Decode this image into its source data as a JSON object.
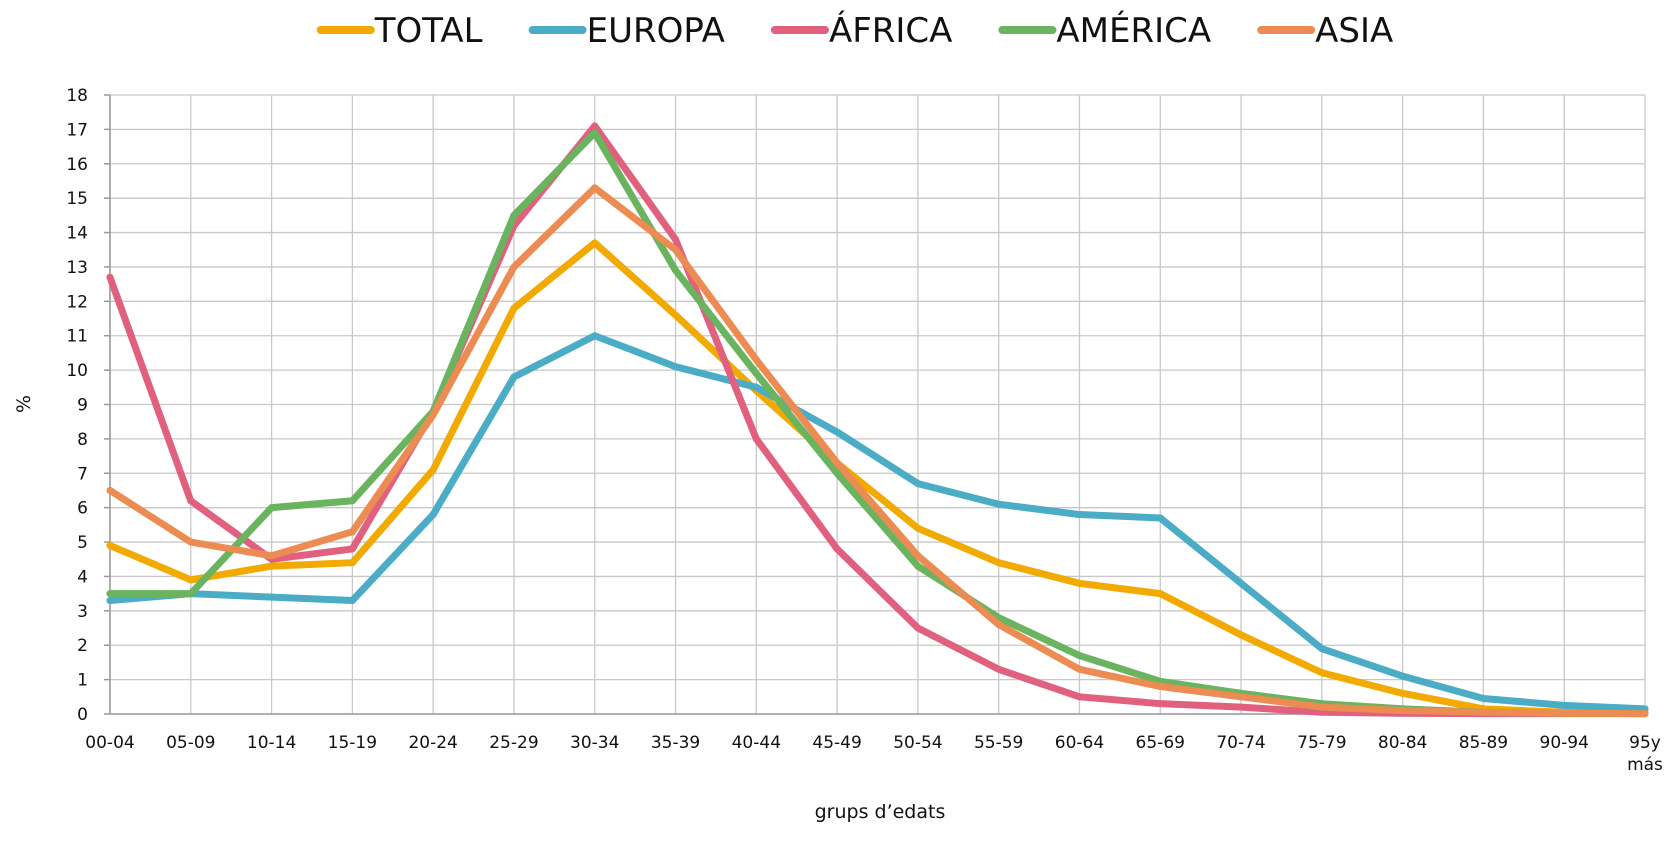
{
  "chart_data": {
    "type": "line",
    "categories": [
      "00-04",
      "05-09",
      "10-14",
      "15-19",
      "20-24",
      "25-29",
      "30-34",
      "35-39",
      "40-44",
      "45-49",
      "50-54",
      "55-59",
      "60-64",
      "65-69",
      "70-74",
      "75-79",
      "80-84",
      "85-89",
      "90-94",
      "95 y más"
    ],
    "category_lines": [
      [
        "00-04"
      ],
      [
        "05-09"
      ],
      [
        "10-14"
      ],
      [
        "15-19"
      ],
      [
        "20-24"
      ],
      [
        "25-29"
      ],
      [
        "30-34"
      ],
      [
        "35-39"
      ],
      [
        "40-44"
      ],
      [
        "45-49"
      ],
      [
        "50-54"
      ],
      [
        "55-59"
      ],
      [
        "60-64"
      ],
      [
        "65-69"
      ],
      [
        "70-74"
      ],
      [
        "75-79"
      ],
      [
        "80-84"
      ],
      [
        "85-89"
      ],
      [
        "90-94"
      ],
      [
        "95y",
        "más"
      ]
    ],
    "xlabel": "grups d’edats",
    "ylabel": "%",
    "ylim": [
      0,
      18
    ],
    "yticks": [
      "0",
      "1",
      "2",
      "3",
      "4",
      "5",
      "6",
      "7",
      "8",
      "9",
      "10",
      "11",
      "12",
      "13",
      "14",
      "15",
      "16",
      "17",
      "18"
    ],
    "grid": true,
    "legend_position": "top",
    "series": [
      {
        "name": "TOTAL",
        "color": "#F2A900",
        "values": [
          4.9,
          3.9,
          4.3,
          4.4,
          7.1,
          11.8,
          13.7,
          11.6,
          9.4,
          7.3,
          5.4,
          4.4,
          3.8,
          3.5,
          2.3,
          1.2,
          0.6,
          0.15,
          0.05,
          0.05
        ]
      },
      {
        "name": "EUROPA",
        "color": "#4BACC6",
        "values": [
          3.3,
          3.5,
          3.4,
          3.3,
          5.8,
          9.8,
          11.0,
          10.1,
          9.5,
          8.2,
          6.7,
          6.1,
          5.8,
          5.7,
          3.8,
          1.9,
          1.1,
          0.45,
          0.25,
          0.15
        ]
      },
      {
        "name": "ÁFRICA",
        "color": "#E0607E",
        "values": [
          12.7,
          6.2,
          4.5,
          4.8,
          8.8,
          14.2,
          17.1,
          13.8,
          8.0,
          4.8,
          2.5,
          1.3,
          0.5,
          0.3,
          0.2,
          0.05,
          0.02,
          0.01,
          0.01,
          0.01
        ]
      },
      {
        "name": "AMÉRICA",
        "color": "#6AB35F",
        "values": [
          3.5,
          3.5,
          6.0,
          6.2,
          8.8,
          14.5,
          16.9,
          12.9,
          9.9,
          7.0,
          4.3,
          2.8,
          1.7,
          0.95,
          0.6,
          0.3,
          0.15,
          0.05,
          0.02,
          0.01
        ]
      },
      {
        "name": "ASIA",
        "color": "#EC8C52",
        "values": [
          6.5,
          5.0,
          4.6,
          5.3,
          8.7,
          13.0,
          15.3,
          13.5,
          10.3,
          7.3,
          4.6,
          2.6,
          1.3,
          0.8,
          0.5,
          0.2,
          0.1,
          0.05,
          0.02,
          0.01
        ]
      }
    ]
  }
}
